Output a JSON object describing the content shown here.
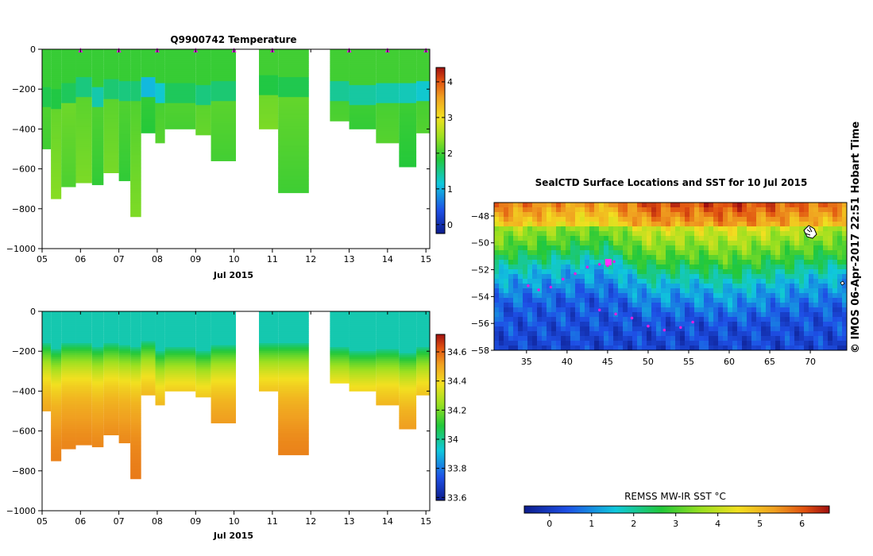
{
  "chart_data": [
    {
      "type": "heatmap",
      "title": "Q9900742  Temperature",
      "xlabel": "Jul 2015",
      "xticks": [
        "05",
        "06",
        "07",
        "08",
        "09",
        "10",
        "11",
        "12",
        "13",
        "14",
        "15"
      ],
      "xlim": [
        5,
        15.1
      ],
      "yticks": [
        "0",
        "−200",
        "−400",
        "−600",
        "−800",
        "−1000"
      ],
      "ylim": [
        -1000,
        0
      ],
      "colorbar_ticks": [
        "0",
        "1",
        "2",
        "3",
        "4"
      ],
      "colorbar_range": [
        -0.25,
        4.4
      ],
      "profile_marker_days": [
        6,
        7,
        8,
        9,
        10,
        11,
        13,
        14,
        15
      ],
      "profiles": [
        {
          "x0": 5.0,
          "x1": 5.23,
          "depth": 500,
          "surface": 1.95,
          "mixed_depth": 230,
          "thermo": 1.75,
          "deep": 2.1
        },
        {
          "x0": 5.23,
          "x1": 5.5,
          "depth": 745,
          "surface": 1.95,
          "mixed_depth": 240,
          "thermo": 1.8,
          "deep": 2.15
        },
        {
          "x0": 5.5,
          "x1": 5.88,
          "depth": 685,
          "surface": 1.95,
          "mixed_depth": 210,
          "thermo": 1.7,
          "deep": 2.25
        },
        {
          "x0": 5.88,
          "x1": 6.3,
          "depth": 670,
          "surface": 1.95,
          "mixed_depth": 180,
          "thermo": 1.55,
          "deep": 2.1
        },
        {
          "x0": 6.3,
          "x1": 6.6,
          "depth": 675,
          "surface": 1.95,
          "mixed_depth": 230,
          "thermo": 1.35,
          "deep": 2.1
        },
        {
          "x0": 6.6,
          "x1": 7.0,
          "depth": 615,
          "surface": 1.95,
          "mixed_depth": 190,
          "thermo": 1.6,
          "deep": 2.1
        },
        {
          "x0": 7.0,
          "x1": 7.3,
          "depth": 655,
          "surface": 1.95,
          "mixed_depth": 200,
          "thermo": 1.55,
          "deep": 2.1
        },
        {
          "x0": 7.3,
          "x1": 7.58,
          "depth": 835,
          "surface": 1.95,
          "mixed_depth": 200,
          "thermo": 1.6,
          "deep": 2.05
        },
        {
          "x0": 7.58,
          "x1": 7.95,
          "depth": 415,
          "surface": 1.95,
          "mixed_depth": 180,
          "thermo": 1.05,
          "deep": 1.95
        },
        {
          "x0": 7.95,
          "x1": 8.2,
          "depth": 470,
          "surface": 1.95,
          "mixed_depth": 210,
          "thermo": 1.2,
          "deep": 2.0
        },
        {
          "x0": 8.2,
          "x1": 9.0,
          "depth": 400,
          "surface": 1.95,
          "mixed_depth": 210,
          "thermo": 1.7,
          "deep": 2.1
        },
        {
          "x0": 9.0,
          "x1": 9.4,
          "depth": 430,
          "surface": 1.95,
          "mixed_depth": 220,
          "thermo": 1.55,
          "deep": 2.1
        },
        {
          "x0": 9.4,
          "x1": 10.05,
          "depth": 560,
          "surface": 1.95,
          "mixed_depth": 200,
          "thermo": 1.6,
          "deep": 2.15
        },
        {
          "x0": 10.65,
          "x1": 11.15,
          "depth": 400,
          "surface": 2.0,
          "mixed_depth": 170,
          "thermo": 1.8,
          "deep": 2.2
        },
        {
          "x0": 11.15,
          "x1": 11.95,
          "depth": 720,
          "surface": 2.0,
          "mixed_depth": 180,
          "thermo": 1.75,
          "deep": 2.2
        },
        {
          "x0": 12.5,
          "x1": 13.0,
          "depth": 360,
          "surface": 2.0,
          "mixed_depth": 200,
          "thermo": 1.45,
          "deep": 2.0
        },
        {
          "x0": 13.0,
          "x1": 13.7,
          "depth": 400,
          "surface": 2.0,
          "mixed_depth": 220,
          "thermo": 1.4,
          "deep": 2.0
        },
        {
          "x0": 13.7,
          "x1": 14.3,
          "depth": 465,
          "surface": 2.0,
          "mixed_depth": 210,
          "thermo": 1.35,
          "deep": 2.0
        },
        {
          "x0": 14.3,
          "x1": 14.75,
          "depth": 590,
          "surface": 2.0,
          "mixed_depth": 210,
          "thermo": 1.3,
          "deep": 2.0
        },
        {
          "x0": 14.75,
          "x1": 15.1,
          "depth": 420,
          "surface": 2.0,
          "mixed_depth": 200,
          "thermo": 1.2,
          "deep": 2.0
        }
      ]
    },
    {
      "type": "heatmap",
      "title": "",
      "xlabel": "Jul 2015",
      "xticks": [
        "05",
        "06",
        "07",
        "08",
        "09",
        "10",
        "11",
        "12",
        "13",
        "14",
        "15"
      ],
      "xlim": [
        5,
        15.1
      ],
      "yticks": [
        "0",
        "−200",
        "−400",
        "−600",
        "−800",
        "−1000"
      ],
      "ylim": [
        -1000,
        0
      ],
      "colorbar_ticks": [
        "33.6",
        "33.8",
        "34",
        "34.2",
        "34.4",
        "34.6"
      ],
      "colorbar_range": [
        33.58,
        34.72
      ],
      "profiles": [
        {
          "x0": 5.0,
          "x1": 5.23,
          "depth": 500,
          "mixed_depth": 160
        },
        {
          "x0": 5.23,
          "x1": 5.5,
          "depth": 745,
          "mixed_depth": 190
        },
        {
          "x0": 5.5,
          "x1": 5.88,
          "depth": 685,
          "mixed_depth": 160
        },
        {
          "x0": 5.88,
          "x1": 6.3,
          "depth": 670,
          "mixed_depth": 160
        },
        {
          "x0": 6.3,
          "x1": 6.6,
          "depth": 675,
          "mixed_depth": 180
        },
        {
          "x0": 6.6,
          "x1": 7.0,
          "depth": 615,
          "mixed_depth": 160
        },
        {
          "x0": 7.0,
          "x1": 7.3,
          "depth": 655,
          "mixed_depth": 170
        },
        {
          "x0": 7.3,
          "x1": 7.58,
          "depth": 835,
          "mixed_depth": 180
        },
        {
          "x0": 7.58,
          "x1": 7.95,
          "depth": 415,
          "mixed_depth": 150
        },
        {
          "x0": 7.95,
          "x1": 8.2,
          "depth": 470,
          "mixed_depth": 200
        },
        {
          "x0": 8.2,
          "x1": 9.0,
          "depth": 400,
          "mixed_depth": 180
        },
        {
          "x0": 9.0,
          "x1": 9.4,
          "depth": 430,
          "mixed_depth": 200
        },
        {
          "x0": 9.4,
          "x1": 10.05,
          "depth": 560,
          "mixed_depth": 170
        },
        {
          "x0": 10.65,
          "x1": 11.15,
          "depth": 400,
          "mixed_depth": 160
        },
        {
          "x0": 11.15,
          "x1": 11.95,
          "depth": 720,
          "mixed_depth": 160
        },
        {
          "x0": 12.5,
          "x1": 13.0,
          "depth": 360,
          "mixed_depth": 180
        },
        {
          "x0": 13.0,
          "x1": 13.7,
          "depth": 400,
          "mixed_depth": 200
        },
        {
          "x0": 13.7,
          "x1": 14.3,
          "depth": 465,
          "mixed_depth": 190
        },
        {
          "x0": 14.3,
          "x1": 14.75,
          "depth": 590,
          "mixed_depth": 210
        },
        {
          "x0": 14.75,
          "x1": 15.1,
          "depth": 420,
          "mixed_depth": 180
        }
      ]
    },
    {
      "type": "heatmap",
      "title": "SealCTD Surface Locations and SST for 10 Jul 2015",
      "xticks": [
        "35",
        "40",
        "45",
        "50",
        "55",
        "60",
        "65",
        "70"
      ],
      "xlim": [
        31,
        74.5
      ],
      "yticks": [
        "−48",
        "−50",
        "−52",
        "−54",
        "−56",
        "−58"
      ],
      "ylim": [
        -58,
        -47
      ],
      "colorbar_label": "REMSS MW-IR SST °C",
      "colorbar_ticks": [
        "0",
        "1",
        "2",
        "3",
        "4",
        "5",
        "6"
      ],
      "colorbar_range": [
        -0.6,
        6.65
      ],
      "sst_front_lat_by_lon": [
        {
          "lon": 31,
          "lat": -52.6
        },
        {
          "lon": 36,
          "lat": -52.4
        },
        {
          "lon": 41,
          "lat": -52.0
        },
        {
          "lon": 45,
          "lat": -51.8
        },
        {
          "lon": 50,
          "lat": -53.4
        },
        {
          "lon": 55,
          "lat": -53.2
        },
        {
          "lon": 60,
          "lat": -53.6
        },
        {
          "lon": 65,
          "lat": -53.2
        },
        {
          "lon": 70,
          "lat": -52.8
        },
        {
          "lon": 74.5,
          "lat": -52.6
        }
      ],
      "track_points": [
        {
          "lon": 35.2,
          "lat": -53.2
        },
        {
          "lon": 36.5,
          "lat": -53.5
        },
        {
          "lon": 38.0,
          "lat": -53.3
        },
        {
          "lon": 39.5,
          "lat": -52.7
        },
        {
          "lon": 41.0,
          "lat": -52.3
        },
        {
          "lon": 42.5,
          "lat": -51.8
        },
        {
          "lon": 44.0,
          "lat": -51.6
        },
        {
          "lon": 45.0,
          "lat": -51.7
        },
        {
          "lon": 45.8,
          "lat": -51.4
        },
        {
          "lon": 44.0,
          "lat": -55.0
        },
        {
          "lon": 46.0,
          "lat": -55.3
        },
        {
          "lon": 48.0,
          "lat": -55.6
        },
        {
          "lon": 50.0,
          "lat": -56.2
        },
        {
          "lon": 52.0,
          "lat": -56.5
        },
        {
          "lon": 54.0,
          "lat": -56.3
        },
        {
          "lon": 55.5,
          "lat": -55.9
        }
      ]
    }
  ],
  "copyright": "© IMOS 06-Apr-2017 22:51 Hobart Time"
}
